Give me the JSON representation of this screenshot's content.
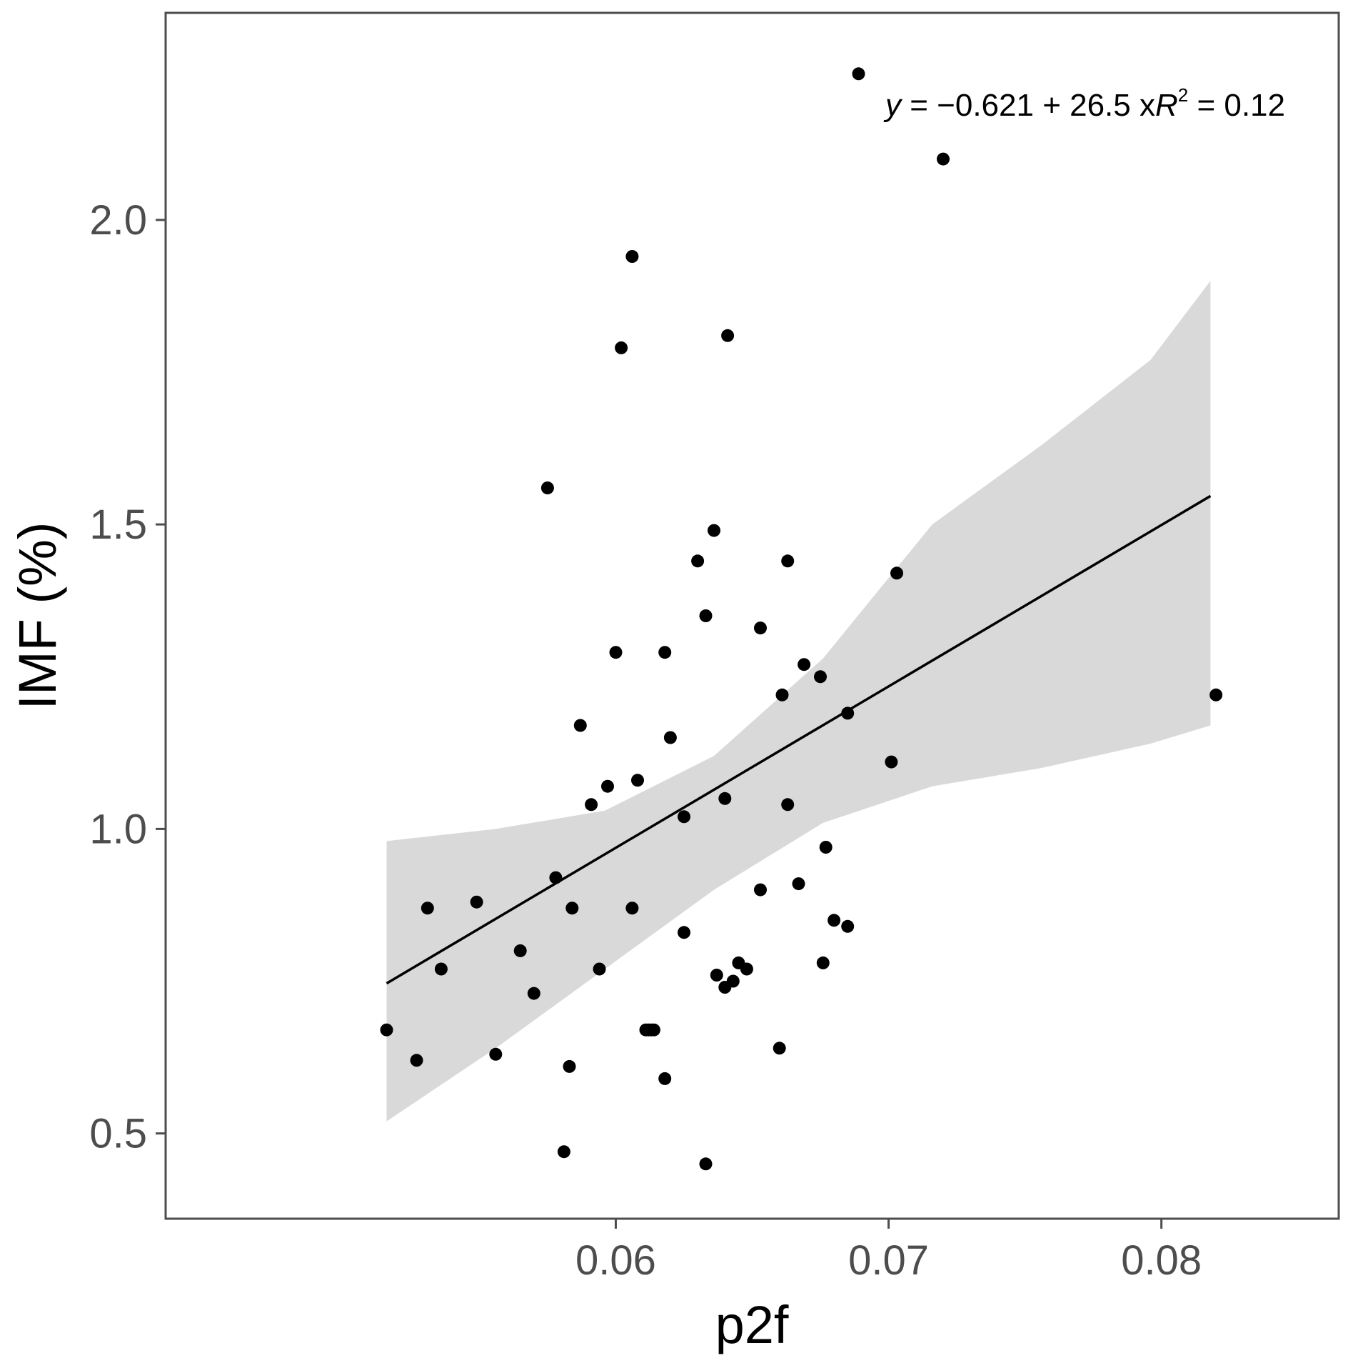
{
  "chart_data": {
    "type": "scatter",
    "xlabel": "p2f",
    "ylabel": "IMF (%)",
    "xlim": [
      0.0435,
      0.0865
    ],
    "ylim": [
      0.36,
      2.34
    ],
    "x_ticks": [
      0.06,
      0.07,
      0.08
    ],
    "x_tick_labels": [
      "0.06",
      "0.07",
      "0.08"
    ],
    "y_ticks": [
      0.5,
      1.0,
      1.5,
      2.0
    ],
    "y_tick_labels": [
      "0.5",
      "1.0",
      "1.5",
      "2.0"
    ],
    "grid": false,
    "equation": {
      "y": "y",
      "eq_body": " = −0.621 + 26.5 x",
      "r": "R",
      "sup": "2",
      "r_value": " = 0.12"
    },
    "fit": {
      "intercept": -0.621,
      "slope": 26.5,
      "x_range": [
        0.0516,
        0.0818
      ]
    },
    "confidence_band": [
      [
        0.0516,
        0.52,
        0.98
      ],
      [
        0.0556,
        0.64,
        1.0
      ],
      [
        0.0596,
        0.77,
        1.03
      ],
      [
        0.0636,
        0.9,
        1.12
      ],
      [
        0.0676,
        1.01,
        1.28
      ],
      [
        0.0716,
        1.07,
        1.5
      ],
      [
        0.0756,
        1.1,
        1.63
      ],
      [
        0.0796,
        1.14,
        1.77
      ],
      [
        0.0818,
        1.17,
        1.9
      ]
    ],
    "points": [
      [
        0.0516,
        0.67
      ],
      [
        0.0527,
        0.62
      ],
      [
        0.0531,
        0.87
      ],
      [
        0.0536,
        0.77
      ],
      [
        0.0549,
        0.88
      ],
      [
        0.0556,
        0.63
      ],
      [
        0.0565,
        0.8
      ],
      [
        0.057,
        0.73
      ],
      [
        0.0575,
        1.56
      ],
      [
        0.0578,
        0.92
      ],
      [
        0.0581,
        0.47
      ],
      [
        0.0583,
        0.61
      ],
      [
        0.0584,
        0.87
      ],
      [
        0.0587,
        1.17
      ],
      [
        0.0591,
        1.04
      ],
      [
        0.0594,
        0.77
      ],
      [
        0.0597,
        1.07
      ],
      [
        0.06,
        1.29
      ],
      [
        0.0602,
        1.79
      ],
      [
        0.0606,
        0.87
      ],
      [
        0.0606,
        1.94
      ],
      [
        0.0608,
        1.08
      ],
      [
        0.0611,
        0.67
      ],
      [
        0.0612,
        0.67
      ],
      [
        0.0613,
        0.67
      ],
      [
        0.0614,
        0.67
      ],
      [
        0.0618,
        1.29
      ],
      [
        0.0618,
        0.59
      ],
      [
        0.062,
        1.15
      ],
      [
        0.0625,
        1.02
      ],
      [
        0.0625,
        0.83
      ],
      [
        0.063,
        1.44
      ],
      [
        0.0633,
        1.35
      ],
      [
        0.0633,
        0.45
      ],
      [
        0.0636,
        1.49
      ],
      [
        0.0637,
        0.76
      ],
      [
        0.064,
        0.74
      ],
      [
        0.064,
        1.05
      ],
      [
        0.0641,
        1.81
      ],
      [
        0.0643,
        0.75
      ],
      [
        0.0645,
        0.78
      ],
      [
        0.0648,
        0.77
      ],
      [
        0.0653,
        0.9
      ],
      [
        0.0653,
        1.33
      ],
      [
        0.066,
        0.64
      ],
      [
        0.0661,
        1.22
      ],
      [
        0.0663,
        1.04
      ],
      [
        0.0663,
        1.44
      ],
      [
        0.0667,
        0.91
      ],
      [
        0.0669,
        1.27
      ],
      [
        0.0675,
        1.25
      ],
      [
        0.0676,
        0.78
      ],
      [
        0.0677,
        0.97
      ],
      [
        0.068,
        0.85
      ],
      [
        0.0685,
        1.19
      ],
      [
        0.0685,
        0.84
      ],
      [
        0.0689,
        2.24
      ],
      [
        0.0701,
        1.11
      ],
      [
        0.0703,
        1.42
      ],
      [
        0.072,
        2.1
      ],
      [
        0.082,
        1.22
      ]
    ]
  }
}
